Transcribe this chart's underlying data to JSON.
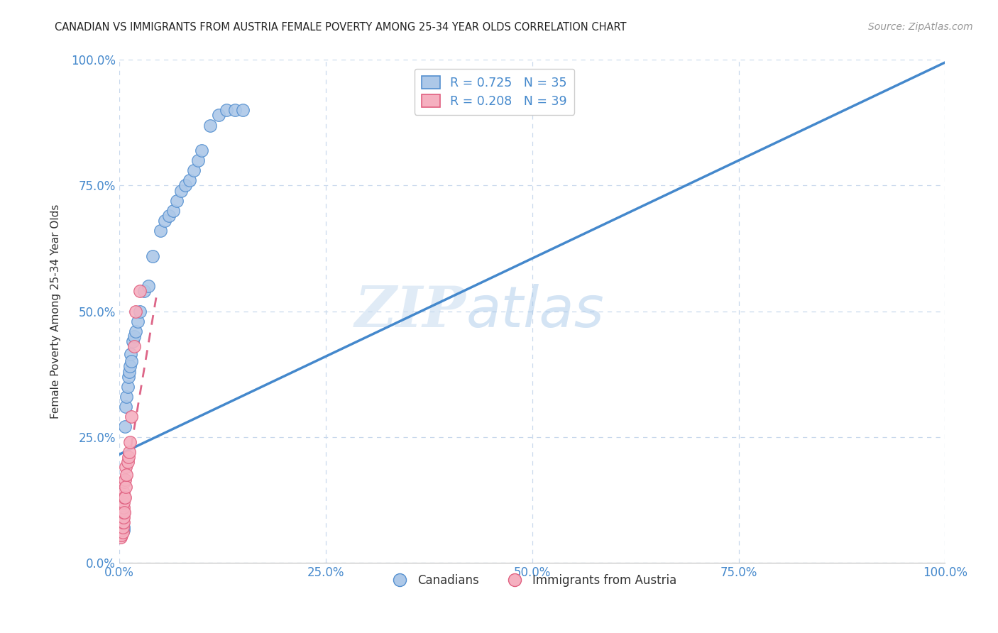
{
  "title": "CANADIAN VS IMMIGRANTS FROM AUSTRIA FEMALE POVERTY AMONG 25-34 YEAR OLDS CORRELATION CHART",
  "source": "Source: ZipAtlas.com",
  "ylabel": "Female Poverty Among 25-34 Year Olds",
  "xlim": [
    0,
    1.0
  ],
  "ylim": [
    0,
    1.0
  ],
  "xticks": [
    0.0,
    0.25,
    0.5,
    0.75,
    1.0
  ],
  "yticks": [
    0.0,
    0.25,
    0.5,
    0.75,
    1.0
  ],
  "xticklabels": [
    "0.0%",
    "25.0%",
    "50.0%",
    "75.0%",
    "100.0%"
  ],
  "yticklabels": [
    "0.0%",
    "25.0%",
    "50.0%",
    "75.0%",
    "100.0%"
  ],
  "blue_R": 0.725,
  "blue_N": 35,
  "pink_R": 0.208,
  "pink_N": 39,
  "blue_color": "#adc8e8",
  "pink_color": "#f5b0c0",
  "blue_edge_color": "#5590d0",
  "pink_edge_color": "#e06080",
  "blue_line_color": "#4488cc",
  "pink_line_color": "#dd6688",
  "legend_label_blue": "Canadians",
  "legend_label_pink": "Immigrants from Austria",
  "watermark_zip": "ZIP",
  "watermark_atlas": "atlas",
  "background_color": "#ffffff",
  "grid_color": "#c8d8ec",
  "title_color": "#222222",
  "axis_tick_color": "#4488cc",
  "blue_x": [
    0.005,
    0.005,
    0.007,
    0.008,
    0.009,
    0.01,
    0.011,
    0.012,
    0.013,
    0.014,
    0.015,
    0.016,
    0.018,
    0.02,
    0.022,
    0.025,
    0.03,
    0.035,
    0.04,
    0.05,
    0.055,
    0.06,
    0.065,
    0.07,
    0.075,
    0.08,
    0.085,
    0.09,
    0.095,
    0.1,
    0.11,
    0.12,
    0.13,
    0.14,
    0.15
  ],
  "blue_y": [
    0.065,
    0.07,
    0.27,
    0.31,
    0.33,
    0.35,
    0.37,
    0.38,
    0.39,
    0.415,
    0.4,
    0.44,
    0.45,
    0.46,
    0.48,
    0.5,
    0.54,
    0.55,
    0.61,
    0.66,
    0.68,
    0.69,
    0.7,
    0.72,
    0.74,
    0.75,
    0.76,
    0.78,
    0.8,
    0.82,
    0.87,
    0.89,
    0.9,
    0.9,
    0.9
  ],
  "pink_x": [
    0.001,
    0.001,
    0.001,
    0.001,
    0.002,
    0.002,
    0.002,
    0.002,
    0.003,
    0.003,
    0.003,
    0.003,
    0.003,
    0.004,
    0.004,
    0.004,
    0.004,
    0.005,
    0.005,
    0.005,
    0.005,
    0.005,
    0.005,
    0.006,
    0.006,
    0.006,
    0.007,
    0.007,
    0.008,
    0.008,
    0.009,
    0.01,
    0.011,
    0.012,
    0.013,
    0.015,
    0.018,
    0.02,
    0.025
  ],
  "pink_y": [
    0.055,
    0.065,
    0.075,
    0.085,
    0.05,
    0.06,
    0.07,
    0.08,
    0.055,
    0.065,
    0.075,
    0.085,
    0.095,
    0.06,
    0.07,
    0.08,
    0.09,
    0.08,
    0.09,
    0.1,
    0.11,
    0.12,
    0.14,
    0.1,
    0.13,
    0.16,
    0.13,
    0.165,
    0.15,
    0.19,
    0.175,
    0.2,
    0.21,
    0.22,
    0.24,
    0.29,
    0.43,
    0.5,
    0.54
  ],
  "blue_line_x": [
    0.0,
    1.0
  ],
  "blue_line_y": [
    0.215,
    0.995
  ],
  "pink_line_x": [
    0.0,
    0.045
  ],
  "pink_line_y": [
    0.09,
    0.53
  ]
}
